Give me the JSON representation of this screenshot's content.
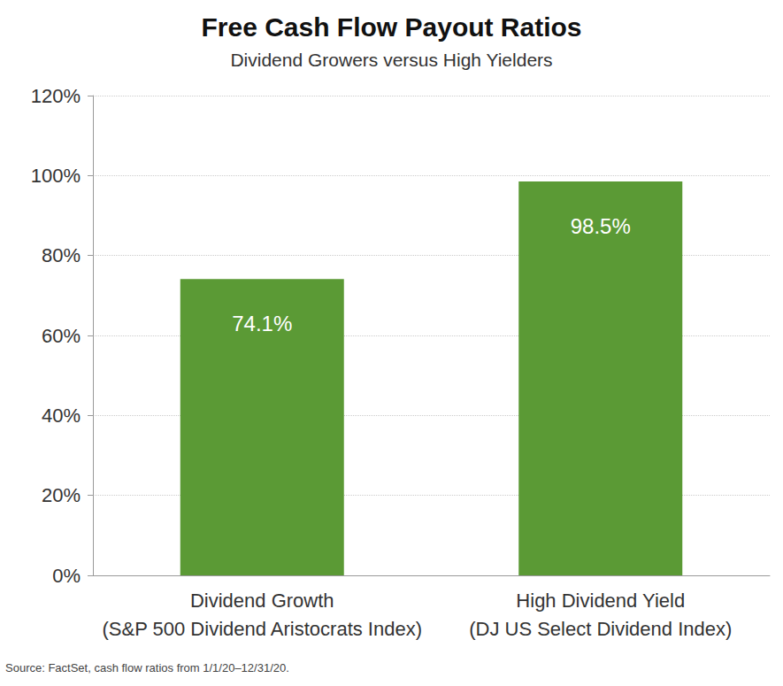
{
  "chart_data": {
    "type": "bar",
    "title": "Free Cash Flow Payout Ratios",
    "subtitle": "Dividend Growers versus High Yielders",
    "categories": [
      "Dividend Growth\n(S&P 500 Dividend Aristocrats Index)",
      "High Dividend Yield\n(DJ US Select Dividend Index)"
    ],
    "values": [
      74.1,
      98.5
    ],
    "value_labels": [
      "74.1%",
      "98.5%"
    ],
    "data_labels": true,
    "color": "#5b9a35",
    "ylim": [
      0,
      120
    ],
    "yticks": [
      {
        "value": 0,
        "label": "0%"
      },
      {
        "value": 20,
        "label": "20%"
      },
      {
        "value": 40,
        "label": "40%"
      },
      {
        "value": 60,
        "label": "60%"
      },
      {
        "value": 80,
        "label": "80%"
      },
      {
        "value": 100,
        "label": "100%"
      },
      {
        "value": 120,
        "label": "120%"
      }
    ],
    "grid": true,
    "source": "Source: FactSet, cash flow ratios from 1/1/20–12/31/20."
  }
}
